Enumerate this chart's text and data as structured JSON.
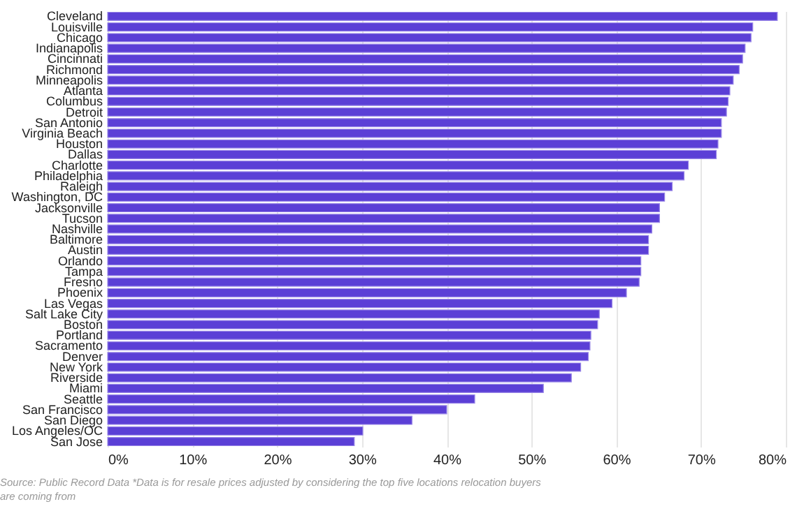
{
  "chart_data": {
    "type": "bar",
    "orientation": "horizontal",
    "categories": [
      "Cleveland",
      "Louisville",
      "Chicago",
      "Indianapolis",
      "Cincinnati",
      "Richmond",
      "Minneapolis",
      "Atlanta",
      "Columbus",
      "Detroit",
      "San Antonio",
      "Virginia Beach",
      "Houston",
      "Dallas",
      "Charlotte",
      "Philadelphia",
      "Raleigh",
      "Washington, DC",
      "Jacksonville",
      "Tucson",
      "Nashville",
      "Baltimore",
      "Austin",
      "Orlando",
      "Tampa",
      "Fresno",
      "Phoenix",
      "Las Vegas",
      "Salt Lake City",
      "Boston",
      "Portland",
      "Sacramento",
      "Denver",
      "New York",
      "Riverside",
      "Miami",
      "Seattle",
      "San Francisco",
      "San Diego",
      "Los Angeles/OC",
      "San Jose"
    ],
    "values": [
      79.0,
      76.1,
      75.9,
      75.2,
      74.9,
      74.5,
      73.8,
      73.4,
      73.2,
      73.0,
      72.4,
      72.4,
      72.0,
      71.8,
      68.5,
      68.0,
      66.6,
      65.7,
      65.1,
      65.1,
      64.2,
      63.8,
      63.8,
      62.9,
      62.9,
      62.7,
      61.2,
      59.5,
      58.0,
      57.8,
      57.0,
      56.9,
      56.7,
      55.8,
      54.7,
      51.4,
      43.3,
      40.0,
      35.9,
      30.1,
      29.1
    ],
    "color": "#5b3fd6",
    "xlim": [
      0,
      80
    ],
    "xticks": [
      {
        "value": 0,
        "label": "0%"
      },
      {
        "value": 10,
        "label": "10%"
      },
      {
        "value": 20,
        "label": "20%"
      },
      {
        "value": 30,
        "label": "30%"
      },
      {
        "value": 40,
        "label": "40%"
      },
      {
        "value": 50,
        "label": "50%"
      },
      {
        "value": 60,
        "label": "60%"
      },
      {
        "value": 70,
        "label": "70%"
      },
      {
        "value": 80,
        "label": "80%"
      }
    ],
    "grid": "x",
    "annotations": [
      "Source: Public Record Data *Data is for resale prices adjusted by considering the top five locations relocation buyers are coming from"
    ]
  }
}
